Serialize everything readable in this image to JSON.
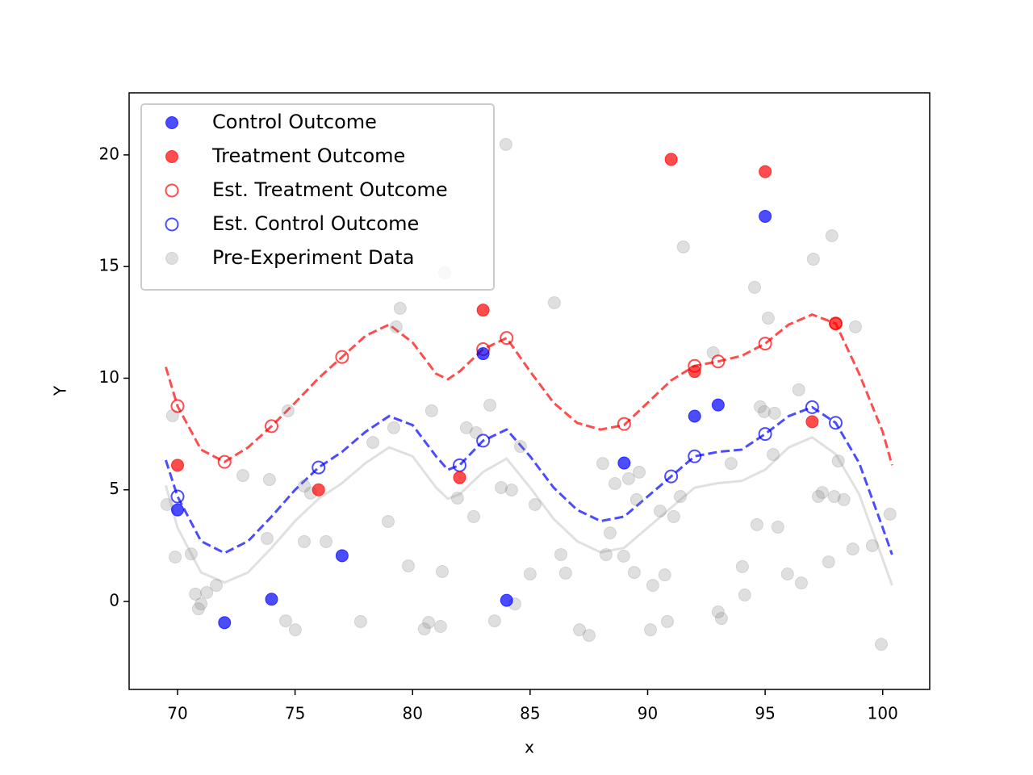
{
  "chart_data": {
    "type": "scatter",
    "xlabel": "x",
    "ylabel": "Y",
    "xlim": [
      67.94,
      102.0
    ],
    "ylim": [
      -3.94,
      22.78
    ],
    "xticks": [
      70,
      75,
      80,
      85,
      90,
      95,
      100
    ],
    "yticks": [
      0,
      5,
      10,
      15,
      20
    ],
    "legend": "upper left",
    "series": [
      {
        "name": "Control Outcome",
        "color": "#0000ff",
        "alpha": 0.7,
        "marker": "filled",
        "x": [
          70,
          72,
          74,
          77,
          83,
          84,
          89,
          92,
          93,
          95
        ],
        "values": [
          4.1,
          -0.95,
          0.1,
          2.05,
          11.1,
          0.05,
          6.2,
          8.3,
          8.8,
          17.25
        ]
      },
      {
        "name": "Treatment Outcome",
        "color": "#ff0000",
        "alpha": 0.7,
        "marker": "filled",
        "x": [
          70,
          76,
          82,
          83,
          91,
          92,
          95,
          97,
          98
        ],
        "values": [
          6.1,
          5.0,
          5.55,
          13.05,
          19.8,
          10.3,
          19.25,
          8.05,
          12.45
        ]
      },
      {
        "name": "Est. Treatment Outcome",
        "color": "#ff0000",
        "alpha": 0.7,
        "marker": "hollow",
        "x": [
          70,
          72,
          74,
          77,
          83,
          84,
          89,
          92,
          93,
          95,
          98
        ],
        "values": [
          8.75,
          6.25,
          7.85,
          10.95,
          11.3,
          11.8,
          7.95,
          10.55,
          10.75,
          11.55,
          12.45
        ]
      },
      {
        "name": "Est. Control Outcome",
        "color": "#0000ff",
        "alpha": 0.7,
        "marker": "hollow",
        "x": [
          70,
          76,
          82,
          83,
          91,
          92,
          95,
          97,
          98
        ],
        "values": [
          4.7,
          6.0,
          6.1,
          7.2,
          5.6,
          6.5,
          7.5,
          8.7,
          8.0
        ]
      },
      {
        "name": "Pre-Experiment Data",
        "color": "#808080",
        "alpha": 0.25,
        "marker": "filled",
        "x": [
          69.55,
          69.79,
          69.9,
          70.58,
          70.76,
          70.89,
          71.0,
          71.24,
          71.65,
          72.78,
          73.81,
          73.91,
          74.6,
          74.7,
          75.01,
          75.39,
          75.39,
          75.66,
          76.32,
          77.79,
          78.31,
          78.96,
          79.2,
          79.3,
          79.47,
          79.82,
          80.5,
          80.68,
          80.81,
          81.19,
          81.26,
          81.36,
          81.91,
          82.29,
          82.6,
          82.7,
          83.29,
          83.49,
          83.77,
          83.97,
          84.21,
          84.35,
          84.59,
          85.0,
          85.21,
          86.03,
          86.31,
          86.51,
          87.1,
          87.51,
          88.09,
          88.23,
          88.4,
          88.61,
          88.98,
          89.19,
          89.43,
          89.53,
          89.64,
          90.12,
          90.22,
          90.53,
          90.73,
          90.84,
          91.11,
          91.39,
          91.52,
          92.79,
          93.0,
          93.14,
          93.55,
          94.03,
          94.13,
          94.55,
          94.65,
          94.79,
          94.96,
          95.13,
          95.34,
          95.4,
          95.54,
          95.95,
          96.43,
          96.54,
          97.05,
          97.26,
          97.43,
          97.7,
          97.84,
          97.94,
          98.11,
          98.35,
          98.73,
          98.84,
          99.56,
          99.94,
          100.31
        ],
        "values": [
          4.34,
          8.32,
          1.99,
          2.13,
          0.33,
          -0.33,
          -0.11,
          0.4,
          0.72,
          5.64,
          2.82,
          5.46,
          -0.87,
          8.54,
          -1.27,
          2.68,
          5.17,
          4.85,
          2.68,
          -0.9,
          7.12,
          3.58,
          7.78,
          12.3,
          13.13,
          1.59,
          -1.23,
          -0.94,
          8.54,
          -1.12,
          1.34,
          14.72,
          4.63,
          7.78,
          3.8,
          7.56,
          8.79,
          -0.87,
          5.1,
          20.47,
          4.99,
          -0.11,
          6.94,
          1.23,
          4.34,
          13.38,
          2.1,
          1.27,
          -1.27,
          -1.52,
          6.18,
          2.1,
          3.07,
          5.28,
          2.03,
          5.5,
          1.3,
          4.56,
          5.79,
          -1.27,
          0.72,
          4.05,
          1.19,
          -0.9,
          3.8,
          4.7,
          15.88,
          11.14,
          -0.47,
          -0.76,
          6.18,
          1.56,
          0.29,
          14.07,
          3.44,
          8.72,
          8.5,
          12.69,
          6.58,
          8.43,
          3.33,
          1.23,
          9.48,
          0.83,
          15.33,
          4.7,
          4.88,
          1.77,
          16.38,
          4.7,
          6.29,
          4.56,
          2.35,
          12.3,
          2.5,
          -1.92,
          3.91
        ]
      }
    ],
    "curves": [
      {
        "color": "#cccccc",
        "alpha": 0.6,
        "dashed": false,
        "x": [
          69.5,
          70,
          71,
          72,
          73,
          74,
          75,
          76,
          77,
          78,
          79,
          80,
          81,
          81.5,
          82,
          83,
          84,
          85,
          86,
          87,
          88,
          89,
          90,
          91,
          92,
          93,
          94,
          95,
          96,
          97,
          98,
          99,
          100,
          100.4
        ],
        "values": [
          5.2,
          3.3,
          1.3,
          0.85,
          1.3,
          2.4,
          3.6,
          4.6,
          5.3,
          6.2,
          6.9,
          6.5,
          5.1,
          4.6,
          4.8,
          5.8,
          6.4,
          5.1,
          3.7,
          2.7,
          2.2,
          2.4,
          3.3,
          4.2,
          5.1,
          5.3,
          5.4,
          5.9,
          6.9,
          7.35,
          6.6,
          4.8,
          1.9,
          0.72
        ]
      },
      {
        "color": "#ff0000",
        "alpha": 0.7,
        "dashed": true,
        "x": [
          69.5,
          70,
          71,
          72,
          73,
          74,
          75,
          76,
          77,
          78,
          79,
          80,
          81,
          81.5,
          82,
          83,
          84,
          85,
          86,
          87,
          88,
          89,
          90,
          91,
          92,
          93,
          94,
          95,
          96,
          97,
          98,
          99,
          100,
          100.4
        ],
        "values": [
          10.5,
          8.75,
          6.8,
          6.25,
          6.9,
          7.85,
          8.9,
          10.0,
          10.95,
          11.9,
          12.4,
          11.6,
          10.2,
          9.95,
          10.3,
          11.3,
          11.8,
          10.3,
          8.9,
          8.0,
          7.7,
          7.9,
          8.9,
          9.9,
          10.55,
          10.75,
          11.0,
          11.55,
          12.4,
          12.85,
          12.45,
          10.2,
          7.6,
          6.1
        ]
      },
      {
        "color": "#0000ff",
        "alpha": 0.7,
        "dashed": true,
        "x": [
          69.5,
          70,
          71,
          72,
          73,
          74,
          75,
          76,
          77,
          78,
          79,
          80,
          81,
          81.5,
          82,
          83,
          84,
          85,
          86,
          87,
          88,
          89,
          90,
          91,
          92,
          93,
          94,
          95,
          96,
          97,
          98,
          99,
          100,
          100.4
        ],
        "values": [
          6.33,
          4.7,
          2.7,
          2.17,
          2.7,
          3.8,
          5.0,
          6.0,
          6.7,
          7.6,
          8.3,
          7.9,
          6.5,
          5.9,
          6.1,
          7.2,
          7.7,
          6.5,
          5.1,
          4.1,
          3.6,
          3.8,
          4.7,
          5.6,
          6.5,
          6.7,
          6.8,
          7.5,
          8.3,
          8.7,
          8.0,
          6.2,
          3.3,
          2.1
        ]
      }
    ]
  }
}
